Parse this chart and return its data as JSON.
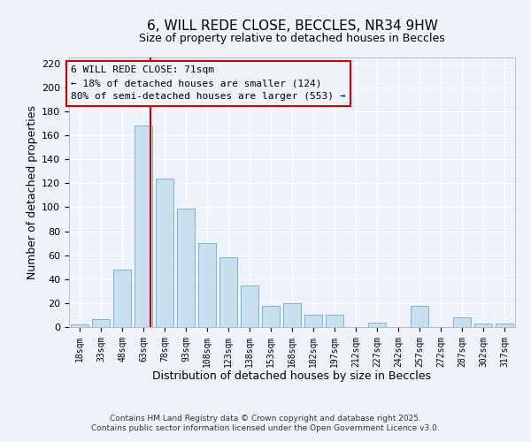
{
  "title": "6, WILL REDE CLOSE, BECCLES, NR34 9HW",
  "subtitle": "Size of property relative to detached houses in Beccles",
  "xlabel": "Distribution of detached houses by size in Beccles",
  "ylabel": "Number of detached properties",
  "bar_labels": [
    "18sqm",
    "33sqm",
    "48sqm",
    "63sqm",
    "78sqm",
    "93sqm",
    "108sqm",
    "123sqm",
    "138sqm",
    "153sqm",
    "168sqm",
    "182sqm",
    "197sqm",
    "212sqm",
    "227sqm",
    "242sqm",
    "257sqm",
    "272sqm",
    "287sqm",
    "302sqm",
    "317sqm"
  ],
  "bar_values": [
    2,
    7,
    48,
    168,
    124,
    99,
    70,
    58,
    35,
    18,
    20,
    10,
    10,
    0,
    4,
    0,
    18,
    0,
    8,
    3,
    3
  ],
  "bar_color": "#c8dff0",
  "bar_edge_color": "#7ab4d8",
  "ylim": [
    0,
    225
  ],
  "yticks": [
    0,
    20,
    40,
    60,
    80,
    100,
    120,
    140,
    160,
    180,
    200,
    220
  ],
  "red_line_index": 3,
  "annotation_title": "6 WILL REDE CLOSE: 71sqm",
  "annotation_line1": "← 18% of detached houses are smaller (124)",
  "annotation_line2": "80% of semi-detached houses are larger (553) →",
  "footnote1": "Contains HM Land Registry data © Crown copyright and database right 2025.",
  "footnote2": "Contains public sector information licensed under the Open Government Licence v3.0.",
  "background_color": "#eef2fb",
  "grid_color": "#ffffff",
  "title_fontsize": 11,
  "subtitle_fontsize": 9,
  "annotation_fontsize": 8,
  "footnote_fontsize": 6.5
}
